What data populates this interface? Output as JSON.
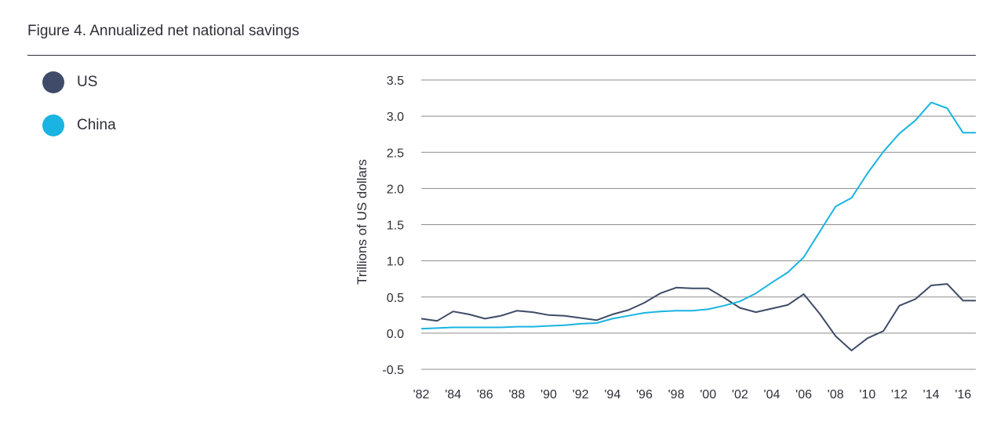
{
  "figure": {
    "title": "Figure 4. Annualized net national savings"
  },
  "chart_data": {
    "type": "line",
    "title": "Figure 4. Annualized net national savings",
    "xlabel": "",
    "ylabel": "Trillions of US dollars",
    "ylim": [
      -0.5,
      3.5
    ],
    "xlim": [
      1982,
      2016.8
    ],
    "y_ticks": [
      -0.5,
      0.0,
      0.5,
      1.0,
      1.5,
      2.0,
      2.5,
      3.0,
      3.5
    ],
    "y_tick_labels": [
      "-0.5",
      "0.0",
      "0.5",
      "1.0",
      "1.5",
      "2.0",
      "2.5",
      "3.0",
      "3.5"
    ],
    "x_ticks": [
      1982,
      1984,
      1986,
      1988,
      1990,
      1992,
      1994,
      1996,
      1998,
      2000,
      2002,
      2004,
      2006,
      2008,
      2010,
      2012,
      2014,
      2016
    ],
    "x_tick_labels": [
      "'82",
      "'84",
      "'86",
      "'88",
      "'90",
      "'92",
      "'94",
      "'96",
      "'98",
      "'00",
      "'02",
      "'04",
      "'06",
      "'08",
      "'10",
      "'12",
      "'14",
      "'16"
    ],
    "grid": "horizontal",
    "legend_position": "left",
    "x": [
      1982,
      1983,
      1984,
      1985,
      1986,
      1987,
      1988,
      1989,
      1990,
      1991,
      1992,
      1993,
      1994,
      1995,
      1996,
      1997,
      1998,
      1999,
      2000,
      2001,
      2002,
      2003,
      2004,
      2005,
      2006,
      2007,
      2008,
      2009,
      2010,
      2011,
      2012,
      2013,
      2014,
      2015,
      2016,
      2016.8
    ],
    "series": [
      {
        "name": "US",
        "color": "#3f4b68",
        "values": [
          0.2,
          0.17,
          0.3,
          0.26,
          0.2,
          0.24,
          0.31,
          0.29,
          0.25,
          0.24,
          0.21,
          0.18,
          0.26,
          0.32,
          0.42,
          0.55,
          0.63,
          0.62,
          0.62,
          0.49,
          0.35,
          0.29,
          0.34,
          0.39,
          0.54,
          0.27,
          -0.04,
          -0.24,
          -0.07,
          0.03,
          0.38,
          0.47,
          0.66,
          0.68,
          0.45,
          0.45
        ]
      },
      {
        "name": "China",
        "color": "#19b4e1",
        "values": [
          0.06,
          0.07,
          0.08,
          0.08,
          0.08,
          0.08,
          0.09,
          0.09,
          0.1,
          0.11,
          0.13,
          0.14,
          0.2,
          0.24,
          0.28,
          0.3,
          0.31,
          0.31,
          0.33,
          0.38,
          0.44,
          0.55,
          0.7,
          0.84,
          1.05,
          1.4,
          1.75,
          1.87,
          2.21,
          2.51,
          2.76,
          2.94,
          3.19,
          3.11,
          2.77,
          2.77
        ]
      }
    ]
  }
}
